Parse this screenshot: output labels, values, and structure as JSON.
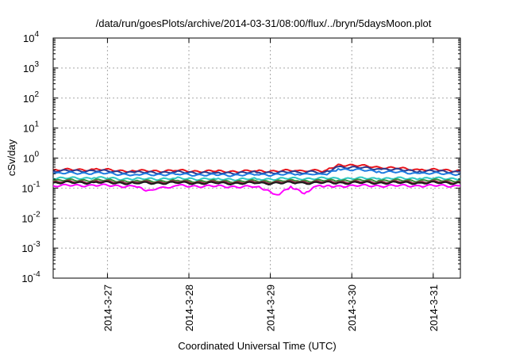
{
  "chart_data": {
    "type": "line",
    "title": "/data/run/goesPlots/archive/2014-03-31/08:00/flux/../bryn/5daysMoon.plot",
    "xlabel": "Coordinated Universal Time (UTC)",
    "ylabel": "cSv/day",
    "y_scale": "log",
    "ylim": [
      0.0001,
      10000
    ],
    "y_ticks": [
      {
        "value": 0.0001,
        "base": "10",
        "exp": "-4"
      },
      {
        "value": 0.001,
        "base": "10",
        "exp": "-3"
      },
      {
        "value": 0.01,
        "base": "10",
        "exp": "-2"
      },
      {
        "value": 0.1,
        "base": "10",
        "exp": "-1"
      },
      {
        "value": 1,
        "base": "10",
        "exp": "0"
      },
      {
        "value": 10,
        "base": "10",
        "exp": "1"
      },
      {
        "value": 100,
        "base": "10",
        "exp": "2"
      },
      {
        "value": 1000,
        "base": "10",
        "exp": "3"
      },
      {
        "value": 10000,
        "base": "10",
        "exp": "4"
      }
    ],
    "xlim": [
      "2014-03-26T08:00",
      "2014-03-31T08:00"
    ],
    "x_ticks": [
      {
        "value": "2014-03-27T00:00",
        "label": "2014-3-27"
      },
      {
        "value": "2014-03-28T00:00",
        "label": "2014-3-28"
      },
      {
        "value": "2014-03-29T00:00",
        "label": "2014-3-29"
      },
      {
        "value": "2014-03-30T00:00",
        "label": "2014-3-30"
      },
      {
        "value": "2014-03-31T00:00",
        "label": "2014-3-31"
      }
    ],
    "grid": true,
    "series": [
      {
        "color": "#e8141c",
        "points": [
          [
            "2014-03-26T08:00",
            0.4
          ],
          [
            "2014-03-26T20:00",
            0.42
          ],
          [
            "2014-03-27T08:00",
            0.37
          ],
          [
            "2014-03-27T20:00",
            0.38
          ],
          [
            "2014-03-28T08:00",
            0.36
          ],
          [
            "2014-03-28T20:00",
            0.37
          ],
          [
            "2014-03-29T08:00",
            0.38
          ],
          [
            "2014-03-29T16:00",
            0.38
          ],
          [
            "2014-03-29T20:00",
            0.62
          ],
          [
            "2014-03-30T08:00",
            0.5
          ],
          [
            "2014-03-30T20:00",
            0.41
          ],
          [
            "2014-03-31T08:00",
            0.39
          ]
        ]
      },
      {
        "color": "#2b3a8f",
        "points": [
          [
            "2014-03-26T08:00",
            0.37
          ],
          [
            "2014-03-26T20:00",
            0.38
          ],
          [
            "2014-03-27T08:00",
            0.33
          ],
          [
            "2014-03-27T20:00",
            0.34
          ],
          [
            "2014-03-28T08:00",
            0.32
          ],
          [
            "2014-03-28T20:00",
            0.33
          ],
          [
            "2014-03-29T08:00",
            0.34
          ],
          [
            "2014-03-29T16:00",
            0.34
          ],
          [
            "2014-03-29T20:00",
            0.52
          ],
          [
            "2014-03-30T08:00",
            0.44
          ],
          [
            "2014-03-30T20:00",
            0.37
          ],
          [
            "2014-03-31T08:00",
            0.35
          ]
        ]
      },
      {
        "color": "#1e7be0",
        "points": [
          [
            "2014-03-26T08:00",
            0.31
          ],
          [
            "2014-03-26T20:00",
            0.32
          ],
          [
            "2014-03-27T08:00",
            0.28
          ],
          [
            "2014-03-27T20:00",
            0.29
          ],
          [
            "2014-03-28T08:00",
            0.27
          ],
          [
            "2014-03-28T20:00",
            0.28
          ],
          [
            "2014-03-29T08:00",
            0.29
          ],
          [
            "2014-03-29T16:00",
            0.29
          ],
          [
            "2014-03-29T20:00",
            0.44
          ],
          [
            "2014-03-30T08:00",
            0.36
          ],
          [
            "2014-03-30T20:00",
            0.31
          ],
          [
            "2014-03-31T08:00",
            0.3
          ]
        ]
      },
      {
        "color": "#2fc9c2",
        "points": [
          [
            "2014-03-26T08:00",
            0.21
          ],
          [
            "2014-03-26T20:00",
            0.22
          ],
          [
            "2014-03-27T08:00",
            0.2
          ],
          [
            "2014-03-27T20:00",
            0.21
          ],
          [
            "2014-03-28T08:00",
            0.2
          ],
          [
            "2014-03-28T20:00",
            0.2
          ],
          [
            "2014-03-29T08:00",
            0.21
          ],
          [
            "2014-03-29T20:00",
            0.21
          ],
          [
            "2014-03-30T08:00",
            0.21
          ],
          [
            "2014-03-30T20:00",
            0.21
          ],
          [
            "2014-03-31T08:00",
            0.21
          ]
        ]
      },
      {
        "color": "#3a8f3a",
        "points": [
          [
            "2014-03-26T08:00",
            0.18
          ],
          [
            "2014-03-26T20:00",
            0.185
          ],
          [
            "2014-03-27T08:00",
            0.17
          ],
          [
            "2014-03-27T20:00",
            0.175
          ],
          [
            "2014-03-28T08:00",
            0.17
          ],
          [
            "2014-03-28T20:00",
            0.17
          ],
          [
            "2014-03-29T08:00",
            0.175
          ],
          [
            "2014-03-29T20:00",
            0.18
          ],
          [
            "2014-03-30T08:00",
            0.18
          ],
          [
            "2014-03-30T20:00",
            0.18
          ],
          [
            "2014-03-31T08:00",
            0.18
          ]
        ]
      },
      {
        "color": "#8a2340",
        "points": [
          [
            "2014-03-26T08:00",
            0.16
          ],
          [
            "2014-03-26T20:00",
            0.165
          ],
          [
            "2014-03-27T08:00",
            0.155
          ],
          [
            "2014-03-27T20:00",
            0.16
          ],
          [
            "2014-03-28T08:00",
            0.155
          ],
          [
            "2014-03-28T20:00",
            0.155
          ],
          [
            "2014-03-29T08:00",
            0.16
          ],
          [
            "2014-03-29T20:00",
            0.16
          ],
          [
            "2014-03-30T08:00",
            0.16
          ],
          [
            "2014-03-30T20:00",
            0.16
          ],
          [
            "2014-03-31T08:00",
            0.16
          ]
        ]
      },
      {
        "color": "#1a1a1a",
        "points": [
          [
            "2014-03-26T08:00",
            0.15
          ],
          [
            "2014-03-26T20:00",
            0.155
          ],
          [
            "2014-03-27T08:00",
            0.145
          ],
          [
            "2014-03-27T20:00",
            0.15
          ],
          [
            "2014-03-28T08:00",
            0.145
          ],
          [
            "2014-03-28T20:00",
            0.145
          ],
          [
            "2014-03-29T08:00",
            0.15
          ],
          [
            "2014-03-29T20:00",
            0.15
          ],
          [
            "2014-03-30T08:00",
            0.15
          ],
          [
            "2014-03-30T20:00",
            0.15
          ],
          [
            "2014-03-31T08:00",
            0.15
          ]
        ]
      },
      {
        "color": "#ff00ff",
        "points": [
          [
            "2014-03-26T08:00",
            0.12
          ],
          [
            "2014-03-26T20:00",
            0.125
          ],
          [
            "2014-03-27T08:00",
            0.115
          ],
          [
            "2014-03-27T12:00",
            0.085
          ],
          [
            "2014-03-27T20:00",
            0.12
          ],
          [
            "2014-03-28T08:00",
            0.115
          ],
          [
            "2014-03-28T20:00",
            0.11
          ],
          [
            "2014-03-29T02:00",
            0.06
          ],
          [
            "2014-03-29T06:00",
            0.115
          ],
          [
            "2014-03-29T10:00",
            0.065
          ],
          [
            "2014-03-29T14:00",
            0.12
          ],
          [
            "2014-03-29T20:00",
            0.12
          ],
          [
            "2014-03-30T08:00",
            0.12
          ],
          [
            "2014-03-30T20:00",
            0.12
          ],
          [
            "2014-03-31T08:00",
            0.12
          ]
        ]
      }
    ]
  }
}
